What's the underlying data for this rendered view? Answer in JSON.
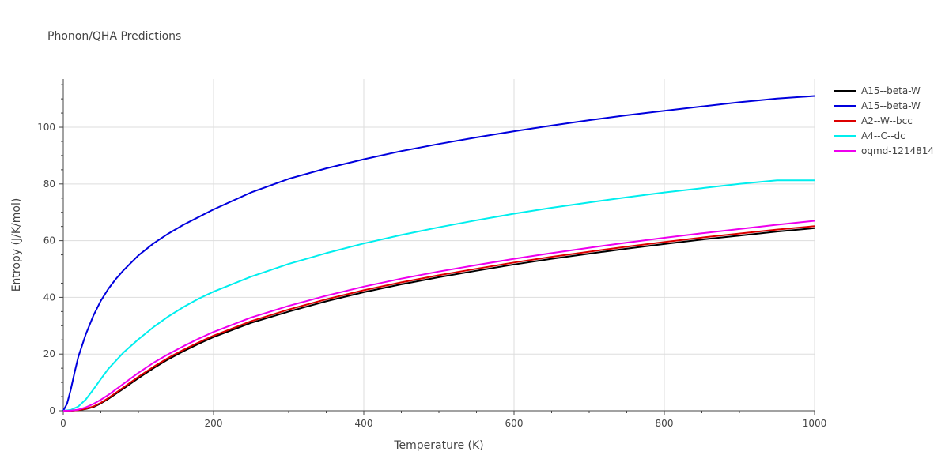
{
  "chart_data": {
    "type": "line",
    "title": "Phonon/QHA Predictions",
    "xlabel": "Temperature (K)",
    "ylabel": "Entropy (J/K/mol)",
    "xlim": [
      0,
      1000
    ],
    "ylim": [
      0,
      117
    ],
    "xticks": [
      0,
      200,
      400,
      600,
      800,
      1000
    ],
    "yticks": [
      0,
      20,
      40,
      60,
      80,
      100
    ],
    "grid": true,
    "legend_position": "right",
    "series": [
      {
        "name": "A15--beta-W",
        "color": "#000000",
        "x": [
          0,
          10,
          20,
          30,
          40,
          50,
          60,
          80,
          100,
          120,
          140,
          160,
          180,
          200,
          250,
          300,
          350,
          400,
          450,
          500,
          550,
          600,
          650,
          700,
          750,
          800,
          850,
          900,
          950,
          1000
        ],
        "y": [
          0,
          0,
          0.2,
          0.6,
          1.3,
          2.6,
          4.2,
          7.8,
          11.5,
          15.0,
          18.2,
          21.0,
          23.6,
          26.0,
          31.0,
          35.0,
          38.6,
          41.8,
          44.6,
          47.1,
          49.4,
          51.6,
          53.6,
          55.4,
          57.2,
          58.8,
          60.4,
          61.8,
          63.2,
          64.4
        ]
      },
      {
        "name": "A15--beta-W",
        "color": "#0000dd",
        "x": [
          0,
          5,
          10,
          15,
          20,
          30,
          40,
          50,
          60,
          70,
          80,
          100,
          120,
          140,
          160,
          180,
          200,
          250,
          300,
          350,
          400,
          450,
          500,
          550,
          600,
          650,
          700,
          750,
          800,
          850,
          900,
          950,
          1000
        ],
        "y": [
          0,
          2.5,
          7.5,
          13.5,
          19.0,
          27.0,
          33.5,
          38.8,
          43.0,
          46.5,
          49.5,
          54.8,
          59.0,
          62.5,
          65.6,
          68.3,
          71.0,
          77.0,
          81.8,
          85.5,
          88.7,
          91.6,
          94.1,
          96.4,
          98.6,
          100.6,
          102.5,
          104.2,
          105.8,
          107.3,
          108.8,
          110.1,
          111.0
        ]
      },
      {
        "name": "A2--W--bcc",
        "color": "#dd0000",
        "x": [
          0,
          10,
          20,
          30,
          40,
          50,
          60,
          80,
          100,
          120,
          140,
          160,
          180,
          200,
          250,
          300,
          350,
          400,
          450,
          500,
          550,
          600,
          650,
          700,
          750,
          800,
          850,
          900,
          950,
          1000
        ],
        "y": [
          0,
          0,
          0.25,
          0.7,
          1.5,
          2.8,
          4.5,
          8.2,
          12.0,
          15.5,
          18.7,
          21.5,
          24.1,
          26.5,
          31.6,
          35.7,
          39.3,
          42.5,
          45.3,
          47.8,
          50.1,
          52.3,
          54.3,
          56.1,
          57.9,
          59.5,
          61.1,
          62.5,
          63.9,
          65.1
        ]
      },
      {
        "name": "A4--C--dc",
        "color": "#00eeee",
        "x": [
          0,
          10,
          20,
          30,
          40,
          50,
          60,
          80,
          100,
          120,
          140,
          160,
          180,
          200,
          250,
          300,
          350,
          400,
          450,
          500,
          550,
          600,
          650,
          700,
          750,
          800,
          850,
          900,
          950,
          1000
        ],
        "y": [
          0,
          0.3,
          1.5,
          4.0,
          7.5,
          11.2,
          14.8,
          20.5,
          25.2,
          29.5,
          33.3,
          36.6,
          39.5,
          42.0,
          47.3,
          51.8,
          55.6,
          59.0,
          62.0,
          64.7,
          67.2,
          69.5,
          71.6,
          73.5,
          75.3,
          77.0,
          78.5,
          80.0,
          81.3,
          81.3
        ]
      },
      {
        "name": "oqmd-1214814",
        "color": "#ee00ee",
        "x": [
          0,
          10,
          20,
          30,
          40,
          50,
          60,
          80,
          100,
          120,
          140,
          160,
          180,
          200,
          250,
          300,
          350,
          400,
          450,
          500,
          550,
          600,
          650,
          700,
          750,
          800,
          850,
          900,
          950,
          1000
        ],
        "y": [
          0,
          0.05,
          0.4,
          1.2,
          2.4,
          3.9,
          5.6,
          9.5,
          13.4,
          16.9,
          20.0,
          22.8,
          25.4,
          27.8,
          32.9,
          37.0,
          40.6,
          43.8,
          46.6,
          49.1,
          51.4,
          53.6,
          55.6,
          57.5,
          59.3,
          61.0,
          62.6,
          64.1,
          65.6,
          67.0
        ]
      }
    ]
  }
}
